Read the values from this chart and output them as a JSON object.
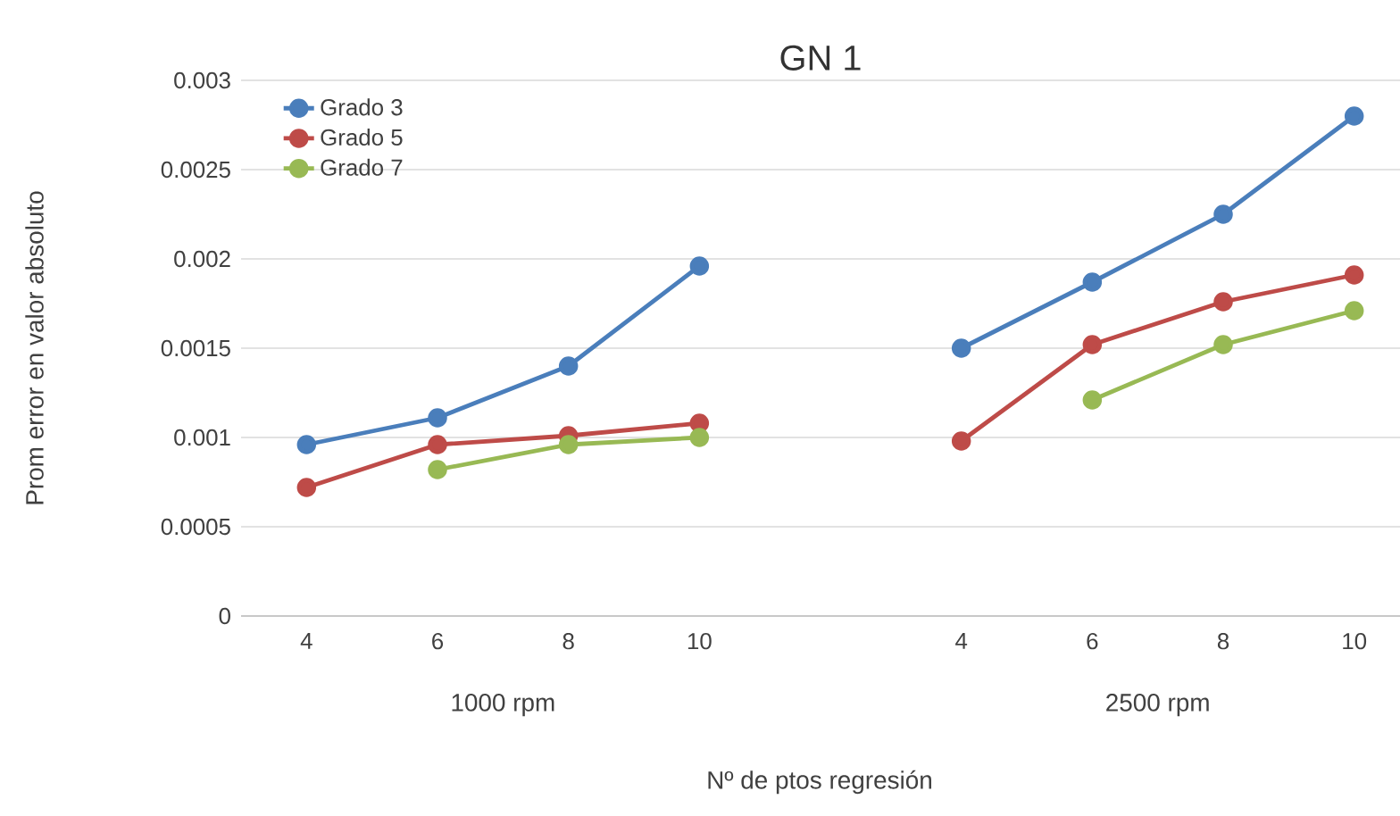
{
  "chart_data": {
    "type": "line",
    "title": "GN 1",
    "xlabel": "Nº de ptos regresión",
    "ylabel": "Prom error en valor absoluto",
    "categories": [
      "4",
      "6",
      "8",
      "10",
      null,
      "4",
      "6",
      "8",
      "10"
    ],
    "annotations": [
      "1000 rpm",
      "2500 rpm"
    ],
    "series": [
      {
        "name": "Grado 3",
        "color": "#4a7ebb",
        "values": [
          0.00096,
          0.00111,
          0.0014,
          0.00196,
          null,
          0.0015,
          0.00187,
          0.00225,
          0.0028
        ]
      },
      {
        "name": "Grado 5",
        "color": "#be4b48",
        "values": [
          0.00072,
          0.00096,
          0.00101,
          0.00108,
          null,
          0.00098,
          0.00152,
          0.00176,
          0.00191
        ]
      },
      {
        "name": "Grado 7",
        "color": "#98b954",
        "values": [
          null,
          0.00082,
          0.00096,
          0.001,
          null,
          null,
          0.00121,
          0.00152,
          0.00171
        ]
      }
    ],
    "ylim": [
      0,
      0.003
    ],
    "yticks": [
      0,
      0.0005,
      0.001,
      0.0015,
      0.002,
      0.0025,
      0.003
    ],
    "grid": "y",
    "legend": "top left",
    "marker": "circle",
    "line_style": "solid"
  }
}
